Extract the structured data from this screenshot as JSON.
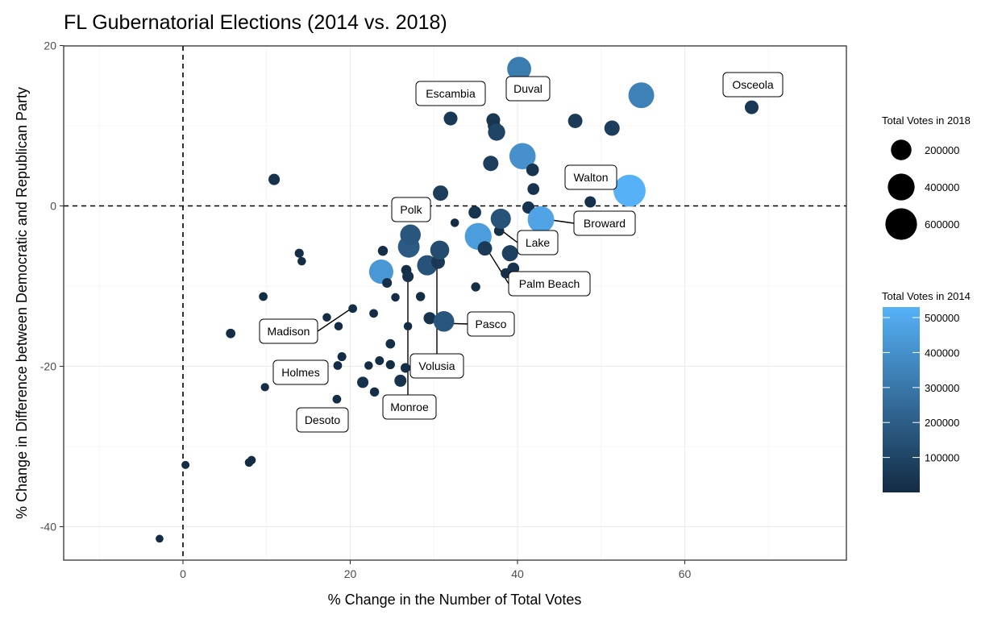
{
  "chart_data": {
    "type": "scatter",
    "title": "FL Gubernatorial Elections (2014 vs. 2018)",
    "xlabel": "% Change in the Number of Total Votes",
    "ylabel": "% Change in Difference between Democratic and Republican Party",
    "xlim": [
      -14,
      79
    ],
    "ylim": [
      -44,
      20
    ],
    "x_ticks": [
      0,
      20,
      40,
      60
    ],
    "y_ticks": [
      -40,
      -20,
      0,
      20
    ],
    "grid": true,
    "reference_lines": {
      "x": 0,
      "y": 0,
      "style": "dashed"
    },
    "size_legend": {
      "title": "Total Votes in 2018",
      "values": [
        200000,
        400000,
        600000
      ],
      "labels": [
        "200000",
        "400000",
        "600000"
      ]
    },
    "color_legend": {
      "title": "Total Votes in 2014",
      "min": 0,
      "max": 530000,
      "low_color": "#132B43",
      "high_color": "#56B1F7",
      "breaks": [
        100000,
        200000,
        300000,
        400000,
        500000
      ],
      "labels": [
        "100000",
        "200000",
        "300000",
        "400000",
        "500000"
      ]
    },
    "points": [
      {
        "x": -2.8,
        "y": -41.5,
        "v2018": 5000,
        "v2014": 5000
      },
      {
        "x": 0.3,
        "y": -32.3,
        "v2018": 6000,
        "v2014": 5000
      },
      {
        "x": 7.9,
        "y": -32.0,
        "v2018": 8000,
        "v2014": 7000
      },
      {
        "x": 8.2,
        "y": -31.7,
        "v2018": 8000,
        "v2014": 7000
      },
      {
        "x": 5.7,
        "y": -15.9,
        "v2018": 14000,
        "v2014": 12000
      },
      {
        "x": 9.6,
        "y": -11.3,
        "v2018": 9000,
        "v2014": 8000
      },
      {
        "x": 9.8,
        "y": -22.6,
        "v2018": 7000,
        "v2014": 6000
      },
      {
        "x": 10.9,
        "y": 3.3,
        "v2018": 30000,
        "v2014": 27000
      },
      {
        "x": 13.9,
        "y": -5.9,
        "v2018": 11000,
        "v2014": 10000
      },
      {
        "x": 14.2,
        "y": -6.9,
        "v2018": 8000,
        "v2014": 7000
      },
      {
        "x": 17.2,
        "y": -13.9,
        "v2018": 8000,
        "v2014": 7000
      },
      {
        "x": 18.5,
        "y": -19.9,
        "v2018": 9000,
        "v2014": 8000
      },
      {
        "x": 18.6,
        "y": -15.0,
        "v2018": 8000,
        "v2014": 7000
      },
      {
        "x": 18.4,
        "y": -24.1,
        "v2018": 9000,
        "v2014": 8000
      },
      {
        "x": 19.0,
        "y": -18.8,
        "v2018": 10000,
        "v2014": 9000
      },
      {
        "x": 20.3,
        "y": -12.8,
        "v2018": 9000,
        "v2014": 8000
      },
      {
        "x": 21.5,
        "y": -22.0,
        "v2018": 30000,
        "v2014": 25000
      },
      {
        "x": 22.2,
        "y": -19.9,
        "v2018": 8000,
        "v2014": 7000
      },
      {
        "x": 22.8,
        "y": -13.4,
        "v2018": 9000,
        "v2014": 8000
      },
      {
        "x": 22.9,
        "y": -23.2,
        "v2018": 12000,
        "v2014": 10000
      },
      {
        "x": 23.5,
        "y": -19.3,
        "v2018": 10000,
        "v2014": 9000
      },
      {
        "x": 23.7,
        "y": -8.2,
        "v2018": 310000,
        "v2014": 430000
      },
      {
        "x": 23.9,
        "y": -5.6,
        "v2018": 18000,
        "v2014": 15000
      },
      {
        "x": 24.4,
        "y": -9.6,
        "v2018": 16000,
        "v2014": 14000
      },
      {
        "x": 24.8,
        "y": -17.2,
        "v2018": 14000,
        "v2014": 12000
      },
      {
        "x": 24.8,
        "y": -19.8,
        "v2018": 11000,
        "v2014": 10000
      },
      {
        "x": 25.4,
        "y": -11.4,
        "v2018": 8000,
        "v2014": 7000
      },
      {
        "x": 26.0,
        "y": -21.8,
        "v2018": 38000,
        "v2014": 33000
      },
      {
        "x": 26.6,
        "y": -20.2,
        "v2018": 15000,
        "v2014": 13000
      },
      {
        "x": 26.9,
        "y": -15.0,
        "v2018": 8000,
        "v2014": 7000
      },
      {
        "x": 26.7,
        "y": -8.0,
        "v2018": 20000,
        "v2014": 17000
      },
      {
        "x": 26.9,
        "y": -8.8,
        "v2018": 30000,
        "v2014": 25000
      },
      {
        "x": 27.0,
        "y": -5.1,
        "v2018": 230000,
        "v2014": 190000
      },
      {
        "x": 27.2,
        "y": -3.6,
        "v2018": 200000,
        "v2014": 170000
      },
      {
        "x": 28.4,
        "y": -11.3,
        "v2018": 12000,
        "v2014": 10000
      },
      {
        "x": 29.2,
        "y": -7.4,
        "v2018": 190000,
        "v2014": 160000
      },
      {
        "x": 29.5,
        "y": -14.0,
        "v2018": 40000,
        "v2014": 35000
      },
      {
        "x": 30.5,
        "y": -7.0,
        "v2018": 60000,
        "v2014": 52000
      },
      {
        "x": 30.7,
        "y": -5.5,
        "v2018": 160000,
        "v2014": 130000
      },
      {
        "x": 30.8,
        "y": 1.6,
        "v2018": 85000,
        "v2014": 70000
      },
      {
        "x": 31.2,
        "y": -14.4,
        "v2018": 200000,
        "v2014": 170000
      },
      {
        "x": 32.0,
        "y": 10.9,
        "v2018": 60000,
        "v2014": 50000
      },
      {
        "x": 32.5,
        "y": -2.1,
        "v2018": 8000,
        "v2014": 7000
      },
      {
        "x": 34.9,
        "y": -0.8,
        "v2018": 45000,
        "v2014": 38000
      },
      {
        "x": 35.0,
        "y": -10.1,
        "v2018": 12000,
        "v2014": 10000
      },
      {
        "x": 35.3,
        "y": -3.8,
        "v2018": 400000,
        "v2014": 450000
      },
      {
        "x": 36.1,
        "y": -5.3,
        "v2018": 70000,
        "v2014": 60000
      },
      {
        "x": 36.8,
        "y": 5.3,
        "v2018": 85000,
        "v2014": 70000
      },
      {
        "x": 37.1,
        "y": 10.7,
        "v2018": 60000,
        "v2014": 50000
      },
      {
        "x": 37.2,
        "y": 10.0,
        "v2018": 45000,
        "v2014": 38000
      },
      {
        "x": 37.5,
        "y": 9.2,
        "v2018": 120000,
        "v2014": 100000
      },
      {
        "x": 37.8,
        "y": -3.1,
        "v2018": 20000,
        "v2014": 17000
      },
      {
        "x": 38.0,
        "y": -1.6,
        "v2018": 190000,
        "v2014": 160000
      },
      {
        "x": 38.6,
        "y": -8.4,
        "v2018": 20000,
        "v2014": 17000
      },
      {
        "x": 39.1,
        "y": -5.9,
        "v2018": 100000,
        "v2014": 85000
      },
      {
        "x": 39.5,
        "y": -7.8,
        "v2018": 35000,
        "v2014": 30000
      },
      {
        "x": 40.2,
        "y": 17.1,
        "v2018": 300000,
        "v2014": 320000
      },
      {
        "x": 40.6,
        "y": 6.2,
        "v2018": 380000,
        "v2014": 400000
      },
      {
        "x": 41.3,
        "y": -0.2,
        "v2018": 40000,
        "v2014": 34000
      },
      {
        "x": 41.8,
        "y": 4.5,
        "v2018": 45000,
        "v2014": 38000
      },
      {
        "x": 41.9,
        "y": 2.1,
        "v2018": 35000,
        "v2014": 30000
      },
      {
        "x": 42.8,
        "y": -1.7,
        "v2018": 390000,
        "v2014": 480000
      },
      {
        "x": 46.9,
        "y": 10.6,
        "v2018": 70000,
        "v2014": 60000
      },
      {
        "x": 48.7,
        "y": 0.5,
        "v2018": 30000,
        "v2014": 25000
      },
      {
        "x": 51.3,
        "y": 9.7,
        "v2018": 85000,
        "v2014": 70000
      },
      {
        "x": 53.4,
        "y": 1.9,
        "v2018": 620000,
        "v2014": 530000
      },
      {
        "x": 54.8,
        "y": 13.8,
        "v2018": 360000,
        "v2014": 340000
      },
      {
        "x": 68.0,
        "y": 12.3,
        "v2018": 60000,
        "v2014": 50000
      }
    ],
    "annotations": [
      {
        "text": "Osceola"
      },
      {
        "text": "Duval"
      },
      {
        "text": "Escambia"
      },
      {
        "text": "Walton"
      },
      {
        "text": "Polk"
      },
      {
        "text": "Broward"
      },
      {
        "text": "Lake"
      },
      {
        "text": "Palm Beach"
      },
      {
        "text": "Pasco"
      },
      {
        "text": "Volusia"
      },
      {
        "text": "Madison"
      },
      {
        "text": "Holmes"
      },
      {
        "text": "Monroe"
      },
      {
        "text": "Desoto"
      }
    ]
  }
}
